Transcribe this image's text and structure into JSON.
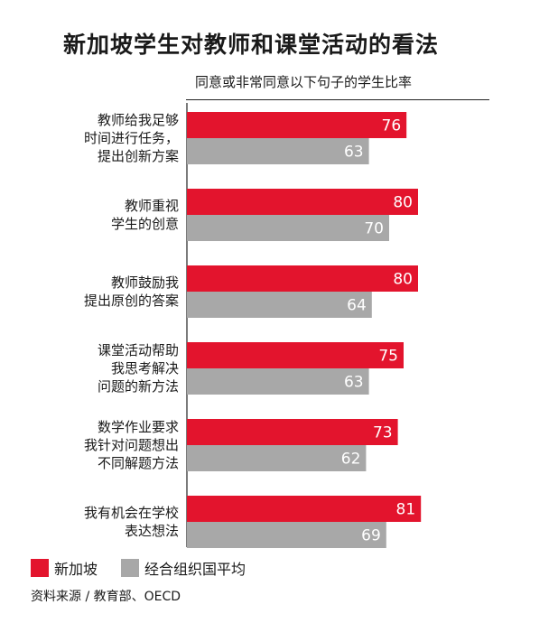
{
  "title": "新加坡学生对教师和课堂活动的看法",
  "subtitle": "同意或非常同意以下句子的学生比率",
  "source": "资料来源 / 教育部、OECD",
  "colors": {
    "singapore": "#e3142d",
    "oecd": "#a8a8a8",
    "text": "#1a1a1a",
    "value_text": "#ffffff"
  },
  "chart_data": {
    "type": "bar",
    "orientation": "horizontal",
    "categories": [
      [
        "教师给我足够",
        "时间进行任务，",
        "提出创新方案"
      ],
      [
        "教师重视",
        "学生的创意"
      ],
      [
        "教师鼓励我",
        "提出原创的答案"
      ],
      [
        "课堂活动帮助",
        "我思考解决",
        "问题的新方法"
      ],
      [
        "数学作业要求",
        "我针对问题想出",
        "不同解题方法"
      ],
      [
        "我有机会在学校",
        "表达想法"
      ]
    ],
    "series": [
      {
        "name": "新加坡",
        "values": [
          76,
          80,
          80,
          75,
          73,
          81
        ]
      },
      {
        "name": "经合组织国平均",
        "values": [
          63,
          70,
          64,
          63,
          62,
          69
        ]
      }
    ],
    "xlim": [
      0,
      100
    ],
    "legend": "bottom-left",
    "grid": false
  }
}
